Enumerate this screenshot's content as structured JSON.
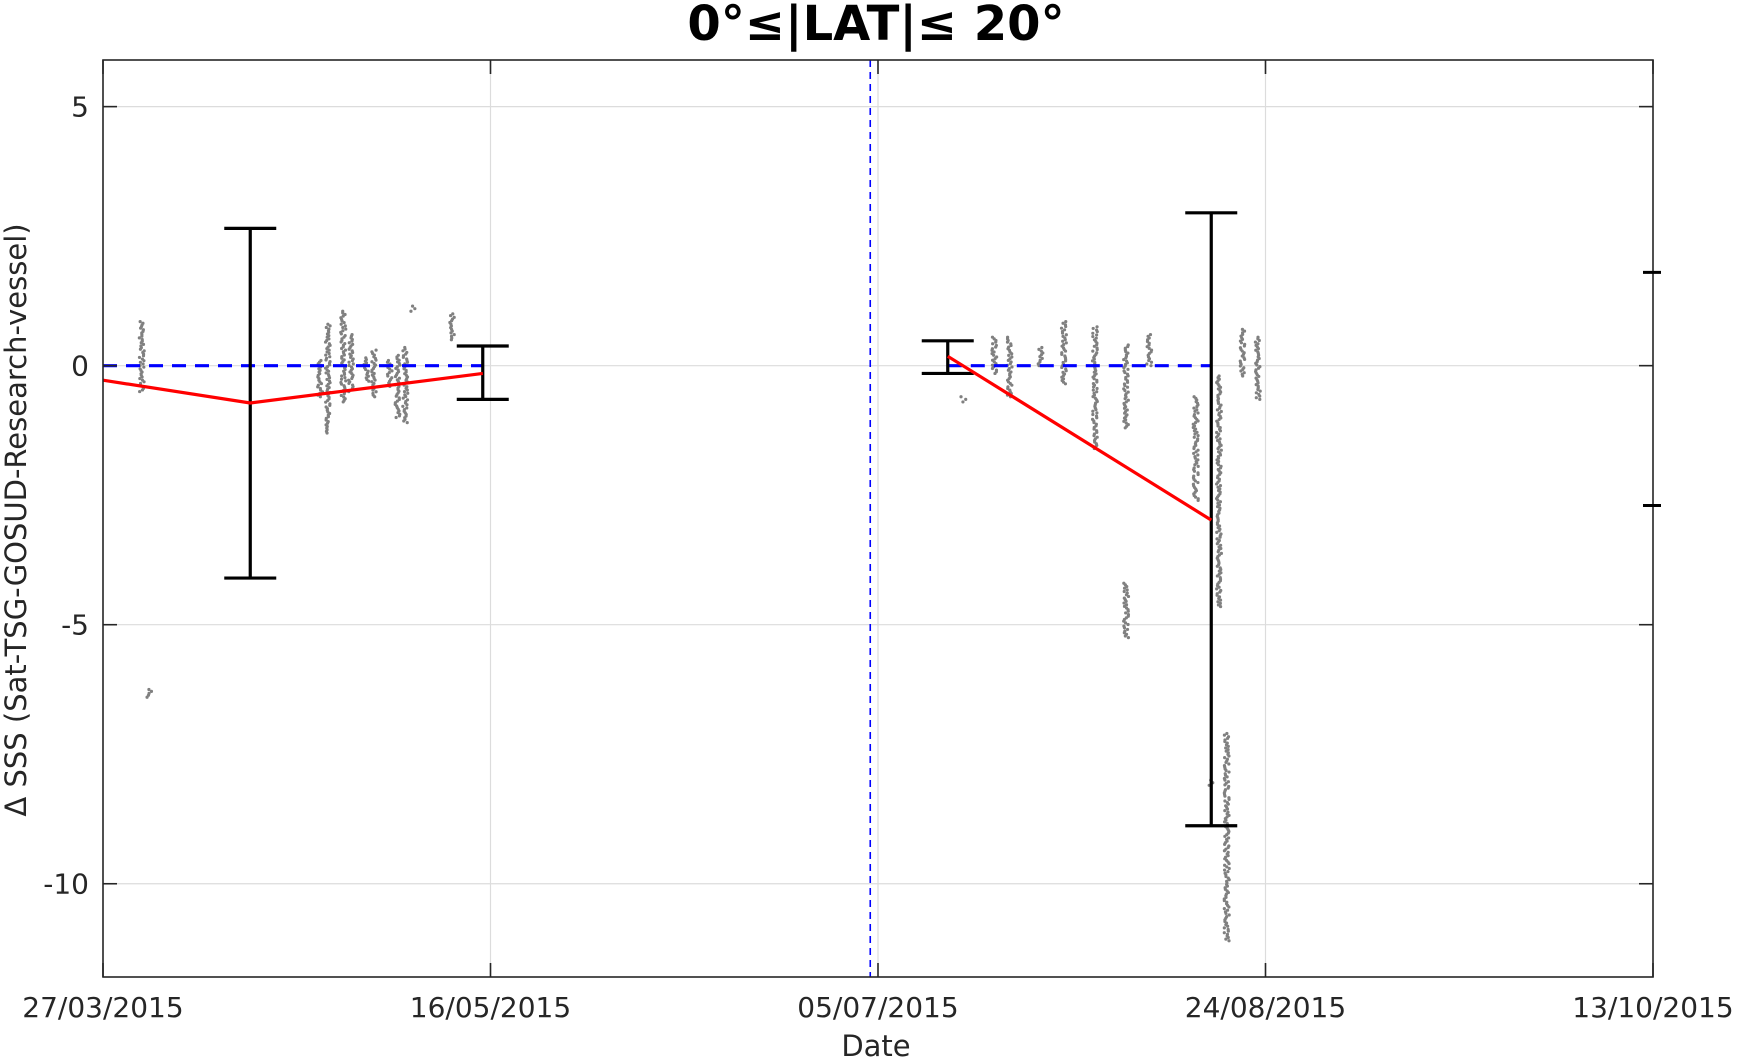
{
  "chart_data": {
    "type": "scatter",
    "title": "0°≤|LAT|≤ 20°",
    "xlabel": "Date",
    "ylabel": "Δ SSS (Sat-TSG-GOSUD-Research-vessel)",
    "x_range": [
      "2015-03-27",
      "2015-10-13"
    ],
    "ylim": [
      -11.8,
      5.9
    ],
    "grid": true,
    "x_ticks": [
      {
        "date": "2015-03-27",
        "label": "27/03/2015"
      },
      {
        "date": "2015-05-16",
        "label": "16/05/2015"
      },
      {
        "date": "2015-07-05",
        "label": "05/07/2015"
      },
      {
        "date": "2015-08-24",
        "label": "24/08/2015"
      },
      {
        "date": "2015-10-13",
        "label": "13/10/2015"
      }
    ],
    "y_ticks": [
      {
        "value": 5,
        "label": "5"
      },
      {
        "value": 0,
        "label": "0"
      },
      {
        "value": -5,
        "label": "-5"
      },
      {
        "value": -10,
        "label": "-10"
      }
    ],
    "right_axis_marks": [
      1.8,
      -2.7
    ],
    "vertical_reference": {
      "date": "2015-07-04",
      "color": "#0000ff",
      "style": "dashed"
    },
    "series": [
      {
        "type": "line",
        "color": "#ff0000",
        "segments": [
          [
            {
              "x": "2015-03-27",
              "y": -0.28
            },
            {
              "x": "2015-04-15",
              "y": -0.72
            },
            {
              "x": "2015-05-15",
              "y": -0.15
            }
          ],
          [
            {
              "x": "2015-07-14",
              "y": 0.18
            },
            {
              "x": "2015-08-17",
              "y": -2.98
            }
          ]
        ]
      },
      {
        "type": "line",
        "color": "#0000ff",
        "style": "dashed",
        "segments": [
          [
            {
              "x": "2015-03-27",
              "y": 0
            },
            {
              "x": "2015-05-15",
              "y": 0
            }
          ],
          [
            {
              "x": "2015-07-14",
              "y": 0
            },
            {
              "x": "2015-08-17",
              "y": 0
            }
          ]
        ]
      },
      {
        "type": "errorbar",
        "color": "#000000",
        "bars": [
          {
            "x": "2015-04-15",
            "low": -4.1,
            "high": 2.65
          },
          {
            "x": "2015-05-15",
            "low": -0.65,
            "high": 0.38
          },
          {
            "x": "2015-07-14",
            "low": -0.15,
            "high": 0.48
          },
          {
            "x": "2015-08-17",
            "low": -8.88,
            "high": 2.95
          }
        ]
      },
      {
        "type": "scatter",
        "color": "#808080",
        "clusters": [
          {
            "x": "2015-04-01",
            "y_min": -0.5,
            "y_max": 0.85
          },
          {
            "x": "2015-04-02",
            "y_min": -6.4,
            "y_max": -6.25
          },
          {
            "x": "2015-04-24",
            "y_min": -0.6,
            "y_max": 0.1
          },
          {
            "x": "2015-04-25",
            "y_min": -1.3,
            "y_max": 0.8
          },
          {
            "x": "2015-04-27",
            "y_min": -0.7,
            "y_max": 1.05
          },
          {
            "x": "2015-04-28",
            "y_min": -0.5,
            "y_max": 0.6
          },
          {
            "x": "2015-04-30",
            "y_min": -0.3,
            "y_max": 0.15
          },
          {
            "x": "2015-05-01",
            "y_min": -0.6,
            "y_max": 0.3
          },
          {
            "x": "2015-05-03",
            "y_min": -0.4,
            "y_max": 0.1
          },
          {
            "x": "2015-05-04",
            "y_min": -1.0,
            "y_max": 0.2
          },
          {
            "x": "2015-05-05",
            "y_min": -1.1,
            "y_max": 0.35
          },
          {
            "x": "2015-05-06",
            "y_min": 1.05,
            "y_max": 1.15
          },
          {
            "x": "2015-05-11",
            "y_min": 0.5,
            "y_max": 1.0
          },
          {
            "x": "2015-07-16",
            "y_min": -0.7,
            "y_max": -0.6
          },
          {
            "x": "2015-07-20",
            "y_min": -0.15,
            "y_max": 0.55
          },
          {
            "x": "2015-07-22",
            "y_min": -0.6,
            "y_max": 0.55
          },
          {
            "x": "2015-07-26",
            "y_min": 0.0,
            "y_max": 0.35
          },
          {
            "x": "2015-07-29",
            "y_min": -0.35,
            "y_max": 0.85
          },
          {
            "x": "2015-08-02",
            "y_min": -1.6,
            "y_max": 0.75
          },
          {
            "x": "2015-08-06",
            "y_min": -5.25,
            "y_max": -4.2
          },
          {
            "x": "2015-08-06",
            "y_min": -1.2,
            "y_max": 0.4
          },
          {
            "x": "2015-08-09",
            "y_min": 0.0,
            "y_max": 0.6
          },
          {
            "x": "2015-08-15",
            "y_min": -2.6,
            "y_max": -0.6
          },
          {
            "x": "2015-08-17",
            "y_min": -8.1,
            "y_max": -8.0
          },
          {
            "x": "2015-08-18",
            "y_min": -4.65,
            "y_max": -0.2
          },
          {
            "x": "2015-08-19",
            "y_min": -11.1,
            "y_max": -7.1
          },
          {
            "x": "2015-08-21",
            "y_min": -0.2,
            "y_max": 0.7
          },
          {
            "x": "2015-08-23",
            "y_min": -0.65,
            "y_max": 0.55
          }
        ]
      }
    ]
  }
}
